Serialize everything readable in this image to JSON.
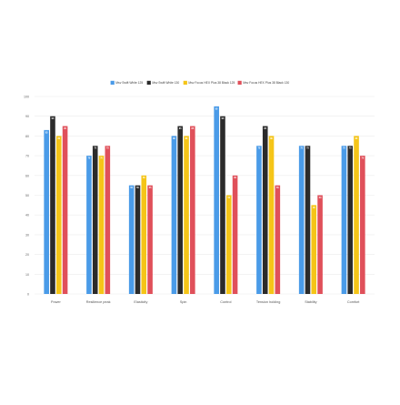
{
  "chart_data": {
    "type": "bar",
    "categories": [
      "Power",
      "Resilience peak",
      "Elasticity",
      "Spin",
      "Control",
      "Tension holding",
      "Stability",
      "Comfort"
    ],
    "series": [
      {
        "name": "Msv Swift White 125",
        "color": "#4a9be8",
        "values": [
          83,
          70,
          55,
          80,
          95,
          75,
          75,
          75
        ]
      },
      {
        "name": "Msv Swift White 130",
        "color": "#2b2b2b",
        "values": [
          90,
          75,
          55,
          85,
          90,
          85,
          75,
          75
        ]
      },
      {
        "name": "Msv Focus HEX Plus 38 Black 125",
        "color": "#f5c518",
        "values": [
          80,
          70,
          60,
          80,
          50,
          80,
          45,
          80
        ]
      },
      {
        "name": "Msv Focus HEX Plus 38 Black 130",
        "color": "#e0505a",
        "values": [
          85,
          75,
          55,
          85,
          60,
          55,
          50,
          70
        ]
      }
    ],
    "ylim": [
      0,
      100
    ],
    "yticks": [
      0,
      10,
      20,
      30,
      40,
      50,
      60,
      70,
      80,
      90,
      100
    ],
    "legend_position": "top-center",
    "grid": "horizontal"
  }
}
